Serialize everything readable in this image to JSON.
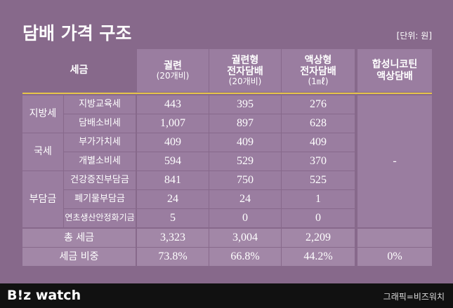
{
  "header": {
    "title": "담배 가격 구조",
    "unit": "[단위: 원]"
  },
  "table": {
    "columns": [
      [
        "세금"
      ],
      [
        "궐련",
        "(20개비)"
      ],
      [
        "궐련형",
        "전자담배",
        "(20개비)"
      ],
      [
        "액상형",
        "전자담배",
        "(1㎖)"
      ],
      [
        "합성니코틴",
        "액상담배"
      ]
    ],
    "groups": [
      {
        "label": "지방세",
        "rows": [
          {
            "item": "지방교육세",
            "values": [
              "443",
              "395",
              "276"
            ]
          },
          {
            "item": "담배소비세",
            "values": [
              "1,007",
              "897",
              "628"
            ]
          }
        ]
      },
      {
        "label": "국세",
        "rows": [
          {
            "item": "부가가치세",
            "values": [
              "409",
              "409",
              "409"
            ]
          },
          {
            "item": "개별소비세",
            "values": [
              "594",
              "529",
              "370"
            ]
          }
        ]
      },
      {
        "label": "부담금",
        "rows": [
          {
            "item": "건강증진부담금",
            "values": [
              "841",
              "750",
              "525"
            ]
          },
          {
            "item": "폐기물부담금",
            "values": [
              "24",
              "24",
              "1"
            ]
          },
          {
            "item": "연초생산안정화기금",
            "values": [
              "5",
              "0",
              "0"
            ]
          }
        ]
      }
    ],
    "synthetic": "-",
    "total": {
      "label": "총 세금",
      "values": [
        "3,323",
        "3,004",
        "2,209"
      ]
    },
    "ratio": {
      "label": "세금 비중",
      "values": [
        "73.8%",
        "66.8%",
        "44.2%",
        "0%"
      ]
    }
  },
  "footer": {
    "logo_left": "B!z",
    "logo_right": "watch",
    "credit": "그래픽=비즈워치"
  }
}
